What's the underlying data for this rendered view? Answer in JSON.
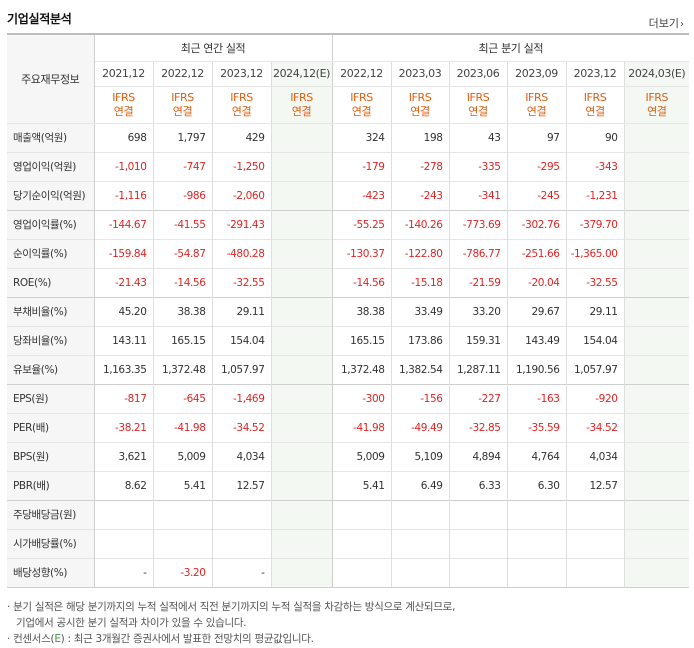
{
  "section": {
    "title": "기업실적분석",
    "more_label": "더보기"
  },
  "table": {
    "label_header": "주요재무정보",
    "annual_header": "최근 연간 실적",
    "quarter_header": "최근 분기 실적",
    "periods": [
      "2021,12",
      "2022,12",
      "2023,12",
      "2024,12(E)",
      "2022,12",
      "2023,03",
      "2023,06",
      "2023,09",
      "2023,12",
      "2024,03(E)"
    ],
    "ifrs": {
      "line1": "IFRS",
      "line2": "연결"
    },
    "rows": [
      {
        "label": "매출액(억원)",
        "values": [
          "698",
          "1,797",
          "429",
          "",
          "324",
          "198",
          "43",
          "97",
          "90",
          ""
        ]
      },
      {
        "label": "영업이익(억원)",
        "values": [
          "-1,010",
          "-747",
          "-1,250",
          "",
          "-179",
          "-278",
          "-335",
          "-295",
          "-343",
          ""
        ]
      },
      {
        "label": "당기순이익(억원)",
        "values": [
          "-1,116",
          "-986",
          "-2,060",
          "",
          "-423",
          "-243",
          "-341",
          "-245",
          "-1,231",
          ""
        ]
      },
      {
        "label": "영업이익률(%)",
        "values": [
          "-144.67",
          "-41.55",
          "-291.43",
          "",
          "-55.25",
          "-140.26",
          "-773.69",
          "-302.76",
          "-379.70",
          ""
        ]
      },
      {
        "label": "순이익률(%)",
        "values": [
          "-159.84",
          "-54.87",
          "-480.28",
          "",
          "-130.37",
          "-122.80",
          "-786.77",
          "-251.66",
          "-1,365.00",
          ""
        ]
      },
      {
        "label": "ROE(%)",
        "values": [
          "-21.43",
          "-14.56",
          "-32.55",
          "",
          "-14.56",
          "-15.18",
          "-21.59",
          "-20.04",
          "-32.55",
          ""
        ]
      },
      {
        "label": "부채비율(%)",
        "values": [
          "45.20",
          "38.38",
          "29.11",
          "",
          "38.38",
          "33.49",
          "33.20",
          "29.67",
          "29.11",
          ""
        ]
      },
      {
        "label": "당좌비율(%)",
        "values": [
          "143.11",
          "165.15",
          "154.04",
          "",
          "165.15",
          "173.86",
          "159.31",
          "143.49",
          "154.04",
          ""
        ]
      },
      {
        "label": "유보율(%)",
        "values": [
          "1,163.35",
          "1,372.48",
          "1,057.97",
          "",
          "1,372.48",
          "1,382.54",
          "1,287.11",
          "1,190.56",
          "1,057.97",
          ""
        ]
      },
      {
        "label": "EPS(원)",
        "values": [
          "-817",
          "-645",
          "-1,469",
          "",
          "-300",
          "-156",
          "-227",
          "-163",
          "-920",
          ""
        ]
      },
      {
        "label": "PER(배)",
        "values": [
          "-38.21",
          "-41.98",
          "-34.52",
          "",
          "-41.98",
          "-49.49",
          "-32.85",
          "-35.59",
          "-34.52",
          ""
        ]
      },
      {
        "label": "BPS(원)",
        "values": [
          "3,621",
          "5,009",
          "4,034",
          "",
          "5,009",
          "5,109",
          "4,894",
          "4,764",
          "4,034",
          ""
        ]
      },
      {
        "label": "PBR(배)",
        "values": [
          "8.62",
          "5.41",
          "12.57",
          "",
          "5.41",
          "6.49",
          "6.33",
          "6.30",
          "12.57",
          ""
        ]
      },
      {
        "label": "주당배당금(원)",
        "values": [
          "",
          "",
          "",
          "",
          "",
          "",
          "",
          "",
          "",
          ""
        ]
      },
      {
        "label": "시가배당률(%)",
        "values": [
          "",
          "",
          "",
          "",
          "",
          "",
          "",
          "",
          "",
          ""
        ]
      },
      {
        "label": "배당성향(%)",
        "values": [
          "-",
          "-3.20",
          "-",
          "",
          "",
          "",
          "",
          "",
          "",
          ""
        ]
      }
    ]
  },
  "notes": {
    "line1": "· 분기 실적은 해당 분기까지의 누적 실적에서 직전 분기까지의 누적 실적을 차감하는 방식으로 계산되므로,",
    "line2": "기업에서 공시한 분기 실적과 차이가 있을 수 있습니다.",
    "line3_prefix": "· 컨센서스(",
    "line3_e": "E",
    "line3_suffix": ") : 최근 3개월간 증권사에서 발표한 전망치의 평균값입니다."
  },
  "colors": {
    "negative": "#e02424",
    "ifrs": "#e05d0d",
    "estimate_bg": "#f3f9f2"
  }
}
